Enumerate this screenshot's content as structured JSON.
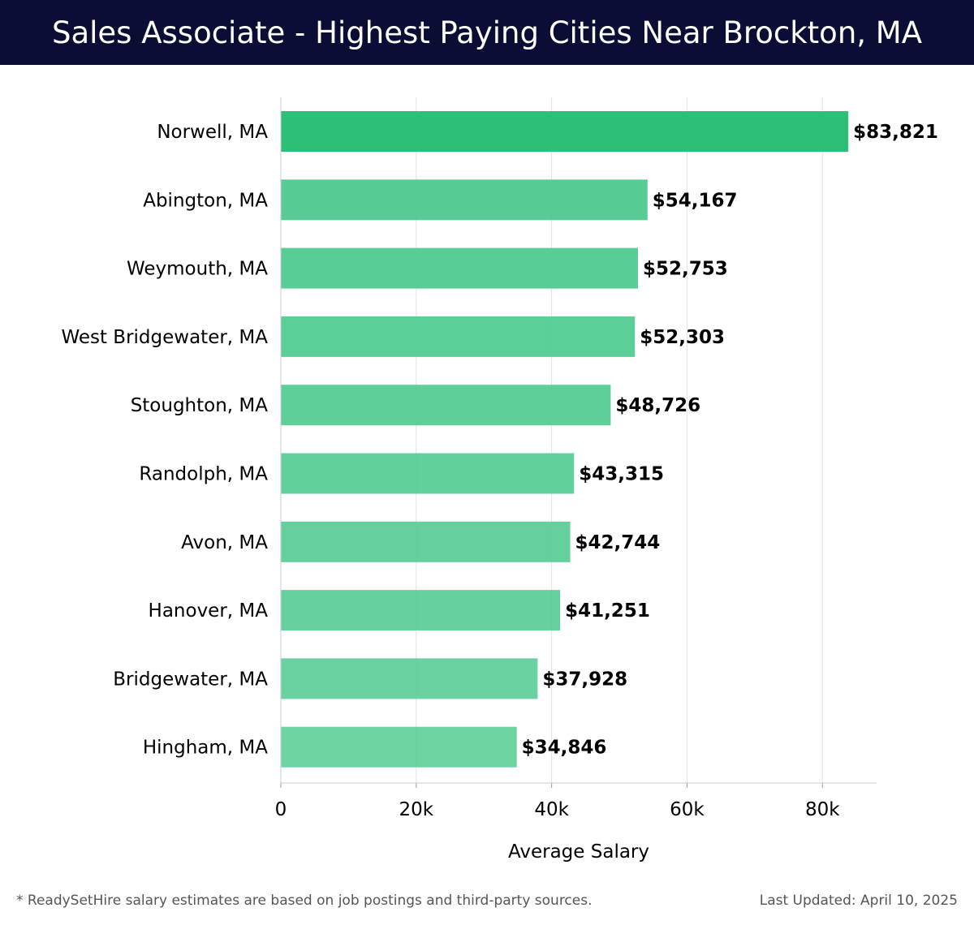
{
  "header": {
    "title": "Sales Associate - Highest Paying Cities Near Brockton, MA"
  },
  "chart_data": {
    "type": "bar",
    "orientation": "horizontal",
    "title": "Sales Associate - Highest Paying Cities Near Brockton, MA",
    "xlabel": "Average Salary",
    "ylabel": "",
    "categories": [
      "Norwell, MA",
      "Abington, MA",
      "Weymouth, MA",
      "West Bridgewater, MA",
      "Stoughton, MA",
      "Randolph, MA",
      "Avon, MA",
      "Hanover, MA",
      "Bridgewater, MA",
      "Hingham, MA"
    ],
    "values": [
      83821,
      54167,
      52753,
      52303,
      48726,
      43315,
      42744,
      41251,
      37928,
      34846
    ],
    "value_labels": [
      "$83,821",
      "$54,167",
      "$52,753",
      "$52,303",
      "$48,726",
      "$43,315",
      "$42,744",
      "$41,251",
      "$37,928",
      "$34,846"
    ],
    "xlim": [
      0,
      88000
    ],
    "xticks": [
      0,
      20000,
      40000,
      60000,
      80000
    ],
    "xtick_labels": [
      "0",
      "20k",
      "40k",
      "60k",
      "80k"
    ],
    "grid": true,
    "colors": {
      "top_bar": "#2dbf78",
      "bar": "#4fca8f",
      "grid": "#e3e3e3",
      "axis": "#cccccc",
      "label": "#000000"
    }
  },
  "footer": {
    "note": "* ReadySetHire salary estimates are based on job postings and third-party sources.",
    "updated": "Last Updated: April 10, 2025"
  }
}
